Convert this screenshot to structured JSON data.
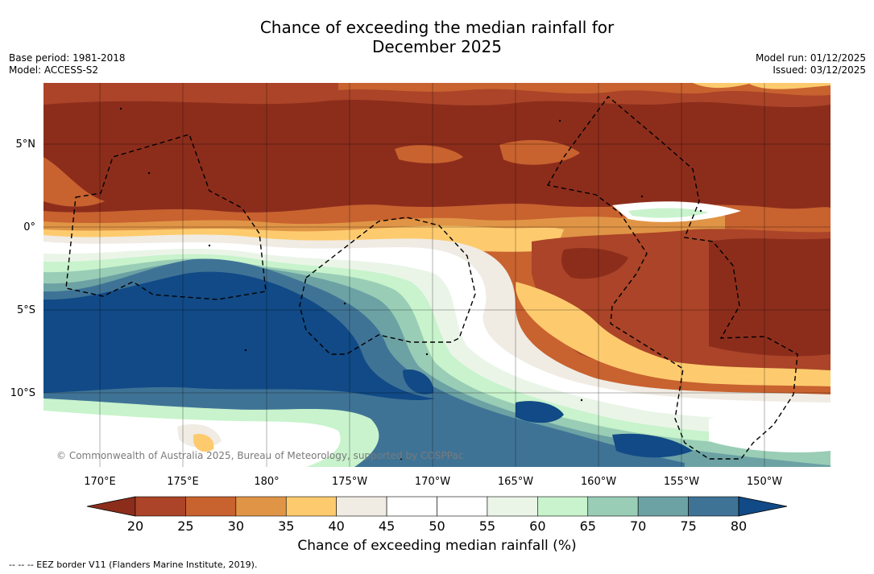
{
  "title": {
    "line1": "Chance of exceeding the median rainfall for",
    "line2": "December 2025"
  },
  "meta": {
    "base_period": "Base period: 1981-2018",
    "model": "Model: ACCESS-S2",
    "model_run": "Model run: 01/12/2025",
    "issued": "Issued: 03/12/2025"
  },
  "map": {
    "lat_labels": [
      "5°N",
      "0°",
      "5°S",
      "10°S"
    ],
    "lon_labels": [
      "170°E",
      "175°E",
      "180°",
      "175°W",
      "170°W",
      "165°W",
      "160°W",
      "155°W",
      "150°W"
    ],
    "copyright": "© Commonwealth of Australia 2025, Bureau of Meteorology, supported by COSPPac"
  },
  "colorbar": {
    "ticks": [
      "20",
      "25",
      "30",
      "35",
      "40",
      "45",
      "50",
      "55",
      "60",
      "65",
      "70",
      "75",
      "80"
    ],
    "colors": [
      "#8c2d1c",
      "#ab4428",
      "#c8622f",
      "#e09546",
      "#fdcb6e",
      "#f0ebe3",
      "#ffffff",
      "#ffffff",
      "#eaf5e8",
      "#c8f3cc",
      "#99cdb6",
      "#6ca2a4",
      "#3f7396",
      "#114a86"
    ],
    "title": "Chance of exceeding median rainfall (%)"
  },
  "legend_note": "--  --  -- EEZ border V11 (Flanders Marine Institute, 2019)."
}
